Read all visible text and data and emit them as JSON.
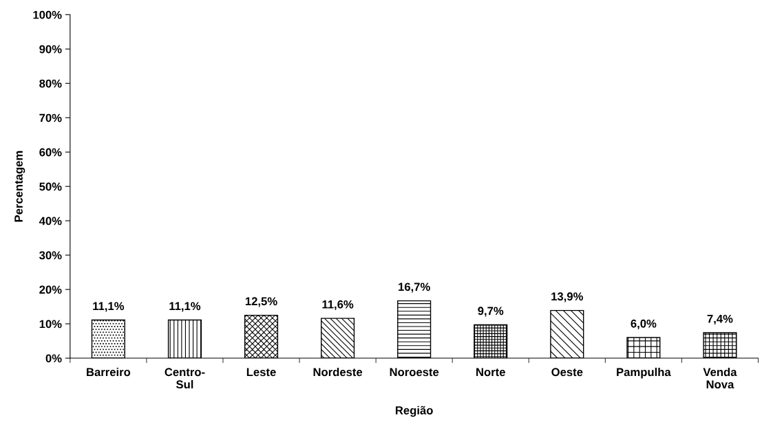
{
  "chart_data": {
    "type": "bar",
    "xlabel": "Região",
    "ylabel": "Percentagem",
    "categories": [
      "Barreiro",
      "Centro-\nSul",
      "Leste",
      "Nordeste",
      "Noroeste",
      "Norte",
      "Oeste",
      "Pampulha",
      "Venda\nNova"
    ],
    "values": [
      11.1,
      11.1,
      12.5,
      11.6,
      16.7,
      9.7,
      13.9,
      6.0,
      7.4
    ],
    "value_labels": [
      "11,1%",
      "11,1%",
      "12,5%",
      "11,6%",
      "16,7%",
      "9,7%",
      "13,9%",
      "6,0%",
      "7,4%"
    ],
    "color": "#000000",
    "ylim": [
      0,
      100
    ],
    "yticks": [
      {
        "value": 0,
        "label": "0%"
      },
      {
        "value": 10,
        "label": "10%"
      },
      {
        "value": 20,
        "label": "20%"
      },
      {
        "value": 30,
        "label": "30%"
      },
      {
        "value": 40,
        "label": "40%"
      },
      {
        "value": 50,
        "label": "50%"
      },
      {
        "value": 60,
        "label": "60%"
      },
      {
        "value": 70,
        "label": "70%"
      },
      {
        "value": 80,
        "label": "80%"
      },
      {
        "value": 90,
        "label": "90%"
      },
      {
        "value": 100,
        "label": "100%"
      }
    ],
    "grid": false,
    "legend": false
  }
}
